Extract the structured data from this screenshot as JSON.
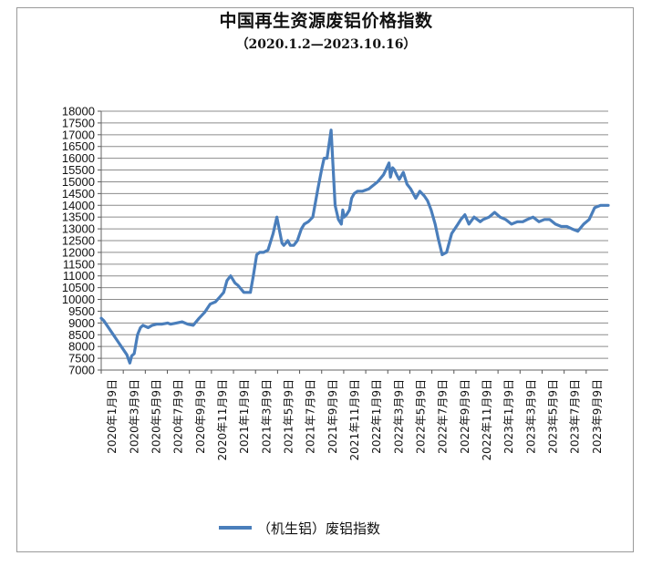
{
  "chart_data": {
    "type": "line",
    "title": "中国再生资源废铝价格指数",
    "subtitle": "（2020.1.2—2023.10.16）",
    "xlabel": "",
    "ylabel": "",
    "ylim": [
      7000,
      18000
    ],
    "yticks": [
      7000,
      7500,
      8000,
      8500,
      9000,
      9500,
      10000,
      10500,
      11000,
      11500,
      12000,
      12500,
      13000,
      13500,
      14000,
      14500,
      15000,
      15500,
      16000,
      16500,
      17000,
      17500,
      18000
    ],
    "xticks": [
      "2020年1月9日",
      "2020年3月9日",
      "2020年5月9日",
      "2020年7月9日",
      "2020年9月9日",
      "2020年11月9日",
      "2021年1月9日",
      "2021年3月9日",
      "2021年5月9日",
      "2021年7月9日",
      "2021年9月9日",
      "2021年11月9日",
      "2022年1月9日",
      "2022年3月9日",
      "2022年5月9日",
      "2022年7月9日",
      "2022年9月9日",
      "2022年11月9日",
      "2023年1月9日",
      "2023年3月9日",
      "2023年5月9日",
      "2023年7月9日",
      "2023年9月9日"
    ],
    "grid": true,
    "legend_position": "bottom",
    "line_color": "#4a7ebb",
    "series": [
      {
        "name": "（机生铝）废铝指数",
        "x": [
          "2020-01-02",
          "2020-01-09",
          "2020-03-12",
          "2020-03-20",
          "2020-03-25",
          "2020-04-01",
          "2020-04-10",
          "2020-04-18",
          "2020-04-25",
          "2020-05-09",
          "2020-05-20",
          "2020-06-01",
          "2020-06-15",
          "2020-07-01",
          "2020-07-09",
          "2020-07-25",
          "2020-08-10",
          "2020-08-25",
          "2020-09-09",
          "2020-09-25",
          "2020-10-10",
          "2020-10-25",
          "2020-11-09",
          "2020-11-20",
          "2020-12-01",
          "2020-12-10",
          "2020-12-20",
          "2021-01-01",
          "2021-01-09",
          "2021-01-25",
          "2021-02-05",
          "2021-02-12",
          "2021-02-20",
          "2021-03-01",
          "2021-03-09",
          "2021-03-20",
          "2021-04-01",
          "2021-04-15",
          "2021-04-25",
          "2021-05-09",
          "2021-05-14",
          "2021-05-20",
          "2021-05-25",
          "2021-06-01",
          "2021-06-10",
          "2021-06-20",
          "2021-07-01",
          "2021-07-09",
          "2021-07-20",
          "2021-08-01",
          "2021-08-15",
          "2021-08-25",
          "2021-09-01",
          "2021-09-09",
          "2021-09-20",
          "2021-10-01",
          "2021-10-10",
          "2021-10-18",
          "2021-10-22",
          "2021-10-26",
          "2021-11-01",
          "2021-11-09",
          "2021-11-15",
          "2021-11-22",
          "2021-12-01",
          "2021-12-15",
          "2022-01-01",
          "2022-01-09",
          "2022-01-25",
          "2022-02-10",
          "2022-02-25",
          "2022-03-01",
          "2022-03-07",
          "2022-03-12",
          "2022-03-18",
          "2022-03-25",
          "2022-04-05",
          "2022-04-15",
          "2022-04-25",
          "2022-05-09",
          "2022-05-20",
          "2022-06-01",
          "2022-06-10",
          "2022-06-20",
          "2022-07-01",
          "2022-07-09",
          "2022-07-20",
          "2022-08-01",
          "2022-08-15",
          "2022-09-01",
          "2022-09-09",
          "2022-09-20",
          "2022-10-01",
          "2022-10-15",
          "2022-11-01",
          "2022-11-09",
          "2022-11-25",
          "2022-12-10",
          "2022-12-25",
          "2023-01-09",
          "2023-01-25",
          "2023-02-10",
          "2023-02-25",
          "2023-03-09",
          "2023-03-25",
          "2023-04-10",
          "2023-04-25",
          "2023-05-09",
          "2023-05-25",
          "2023-06-10",
          "2023-06-25",
          "2023-07-09",
          "2023-07-25",
          "2023-08-10",
          "2023-08-25",
          "2023-09-09",
          "2023-09-25",
          "2023-10-16"
        ],
        "values": [
          9200,
          9100,
          7650,
          7300,
          7600,
          7700,
          8500,
          8800,
          8900,
          8800,
          8900,
          8950,
          8950,
          9000,
          8950,
          9000,
          9050,
          8950,
          8900,
          9200,
          9450,
          9800,
          9900,
          10100,
          10300,
          10800,
          11000,
          10700,
          10600,
          10300,
          10300,
          10300,
          11000,
          11900,
          12000,
          12000,
          12100,
          12800,
          13500,
          12400,
          12300,
          12400,
          12500,
          12300,
          12300,
          12500,
          13000,
          13200,
          13300,
          13500,
          14700,
          15500,
          16000,
          16000,
          17200,
          14000,
          13400,
          13200,
          13800,
          13500,
          13600,
          13800,
          14300,
          14500,
          14600,
          14600,
          14700,
          14800,
          15000,
          15300,
          15800,
          15200,
          15600,
          15500,
          15300,
          15100,
          15400,
          14900,
          14700,
          14300,
          14600,
          14400,
          14200,
          13800,
          13200,
          12600,
          11900,
          12000,
          12800,
          13200,
          13400,
          13600,
          13200,
          13500,
          13300,
          13400,
          13500,
          13700,
          13500,
          13400,
          13200,
          13300,
          13300,
          13400,
          13500,
          13300,
          13400,
          13400,
          13200,
          13100,
          13100,
          13000,
          12900,
          13200,
          13400,
          13900,
          14000,
          14000
        ]
      }
    ]
  }
}
